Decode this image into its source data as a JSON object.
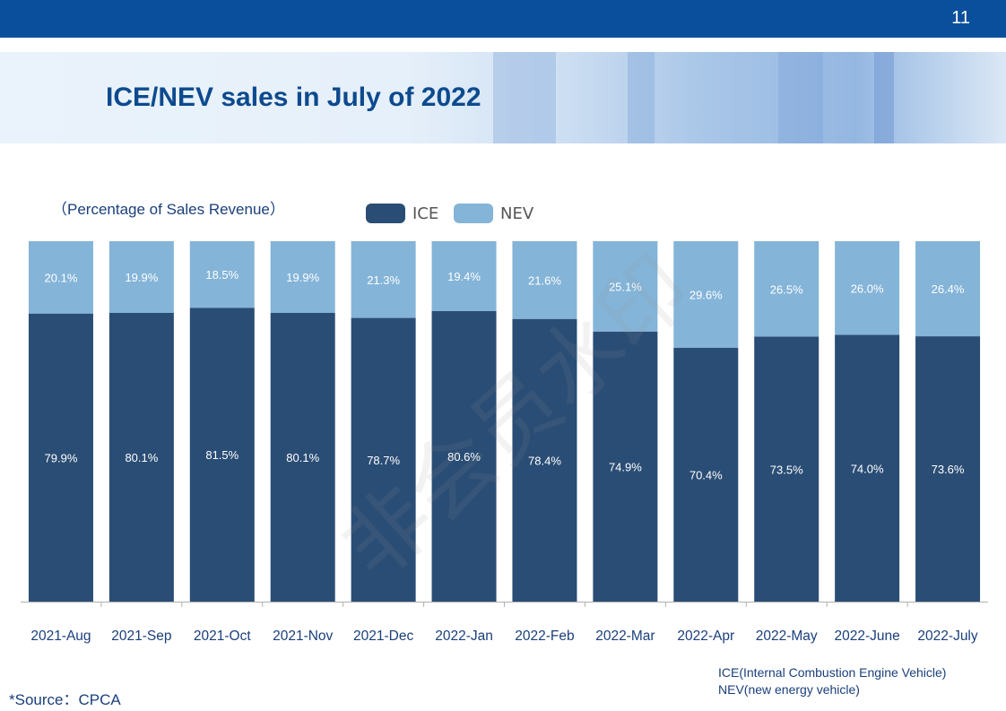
{
  "page": {
    "page_number": "11",
    "title": "ICE/NEV sales in July of 2022",
    "subtitle": "（Percentage of Sales Revenue）",
    "source": "*Source：CPCA",
    "notes": [
      "ICE(Internal Combustion Engine Vehicle)",
      "NEV(new energy vehicle)"
    ],
    "watermark": "非会员水印"
  },
  "colors": {
    "header": "#0a4f9c",
    "ice": "#2a4d75",
    "nev": "#84b4d8",
    "title": "#0d4a8e"
  },
  "chart_data": {
    "type": "bar",
    "stacked": true,
    "percent": true,
    "categories": [
      "2021-Aug",
      "2021-Sep",
      "2021-Oct",
      "2021-Nov",
      "2021-Dec",
      "2022-Jan",
      "2022-Feb",
      "2022-Mar",
      "2022-Apr",
      "2022-May",
      "2022-June",
      "2022-July"
    ],
    "series": [
      {
        "name": "ICE",
        "values": [
          79.9,
          80.1,
          81.5,
          80.1,
          78.7,
          80.6,
          78.4,
          74.9,
          70.4,
          73.5,
          74.0,
          73.6
        ],
        "labels": [
          "79.9%",
          "80.1%",
          "81.5%",
          "80.1%",
          "78.7%",
          "80.6%",
          "78.4%",
          "74.9%",
          "70.4%",
          "73.5%",
          "74.0%",
          "73.6%"
        ]
      },
      {
        "name": "NEV",
        "values": [
          20.1,
          19.9,
          18.5,
          19.9,
          21.3,
          19.4,
          21.6,
          25.1,
          29.6,
          26.5,
          26.0,
          26.4
        ],
        "labels": [
          "20.1%",
          "19.9%",
          "18.5%",
          "19.9%",
          "21.3%",
          "19.4%",
          "21.6%",
          "25.1%",
          "29.6%",
          "26.5%",
          "26.0%",
          "26.4%"
        ]
      }
    ],
    "ylim": [
      0,
      100
    ],
    "legend": "top"
  }
}
